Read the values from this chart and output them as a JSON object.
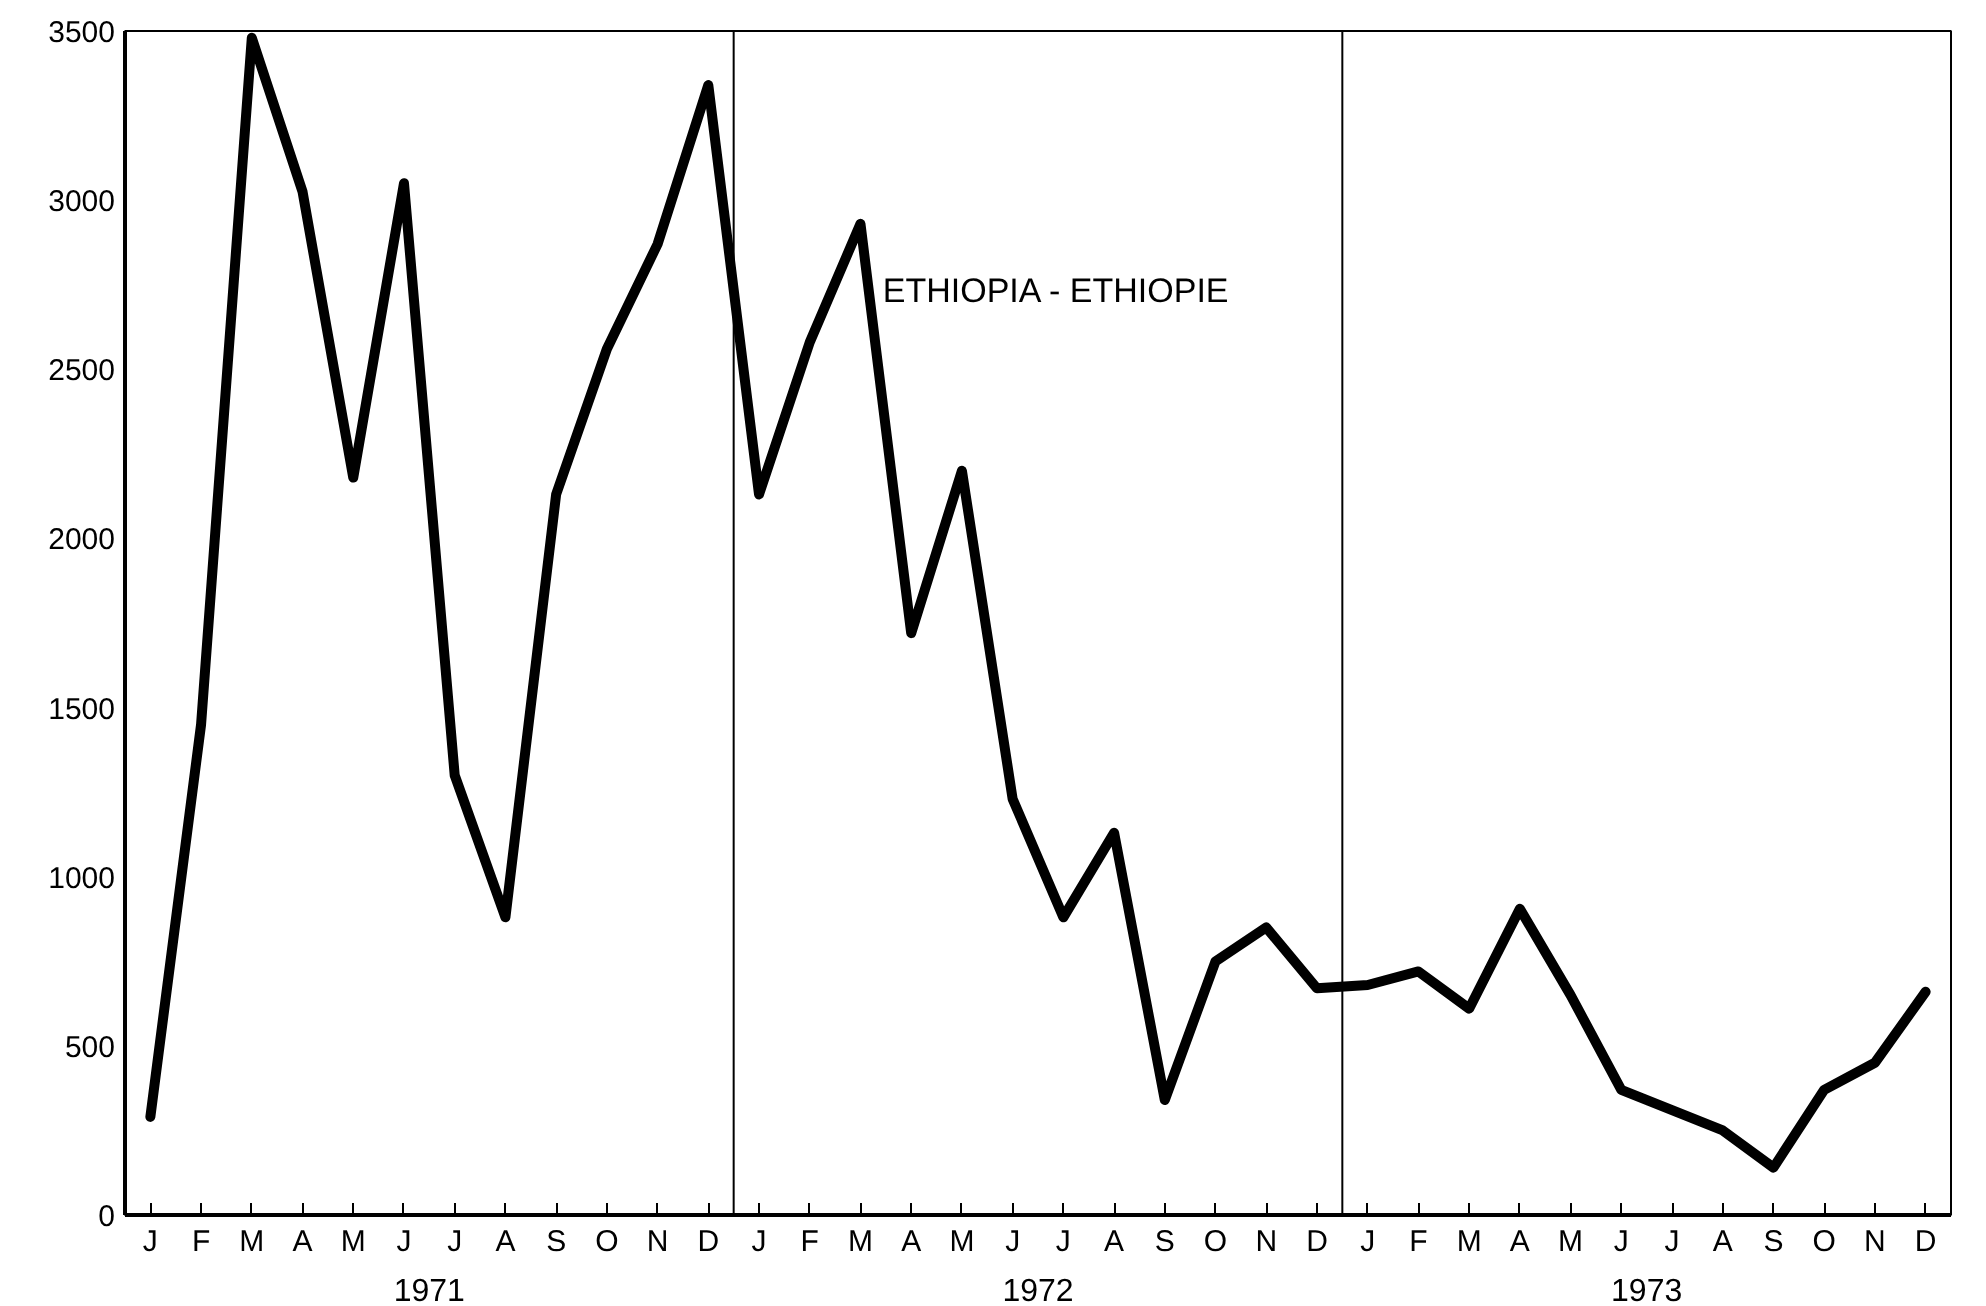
{
  "chart_data": {
    "type": "line",
    "title": "ETHIOPIA - ETHIOPIE",
    "categories": [
      "J",
      "F",
      "M",
      "A",
      "M",
      "J",
      "J",
      "A",
      "S",
      "O",
      "N",
      "D",
      "J",
      "F",
      "M",
      "A",
      "M",
      "J",
      "J",
      "A",
      "S",
      "O",
      "N",
      "D",
      "J",
      "F",
      "M",
      "A",
      "M",
      "J",
      "J",
      "A",
      "S",
      "O",
      "N",
      "D"
    ],
    "values": [
      290,
      1450,
      3480,
      3025,
      2180,
      3050,
      1300,
      880,
      2130,
      2560,
      2870,
      3340,
      2130,
      2580,
      2930,
      1720,
      2200,
      1230,
      880,
      1130,
      340,
      750,
      850,
      670,
      680,
      720,
      610,
      905,
      650,
      370,
      310,
      250,
      140,
      370,
      450,
      660
    ],
    "color": "#000000",
    "grid": false,
    "ylim": [
      0,
      3500
    ],
    "yticks": [
      0,
      500,
      1000,
      1500,
      2000,
      2500,
      3000,
      3500
    ],
    "annotations": [
      "1971",
      "1972",
      "1973"
    ]
  }
}
